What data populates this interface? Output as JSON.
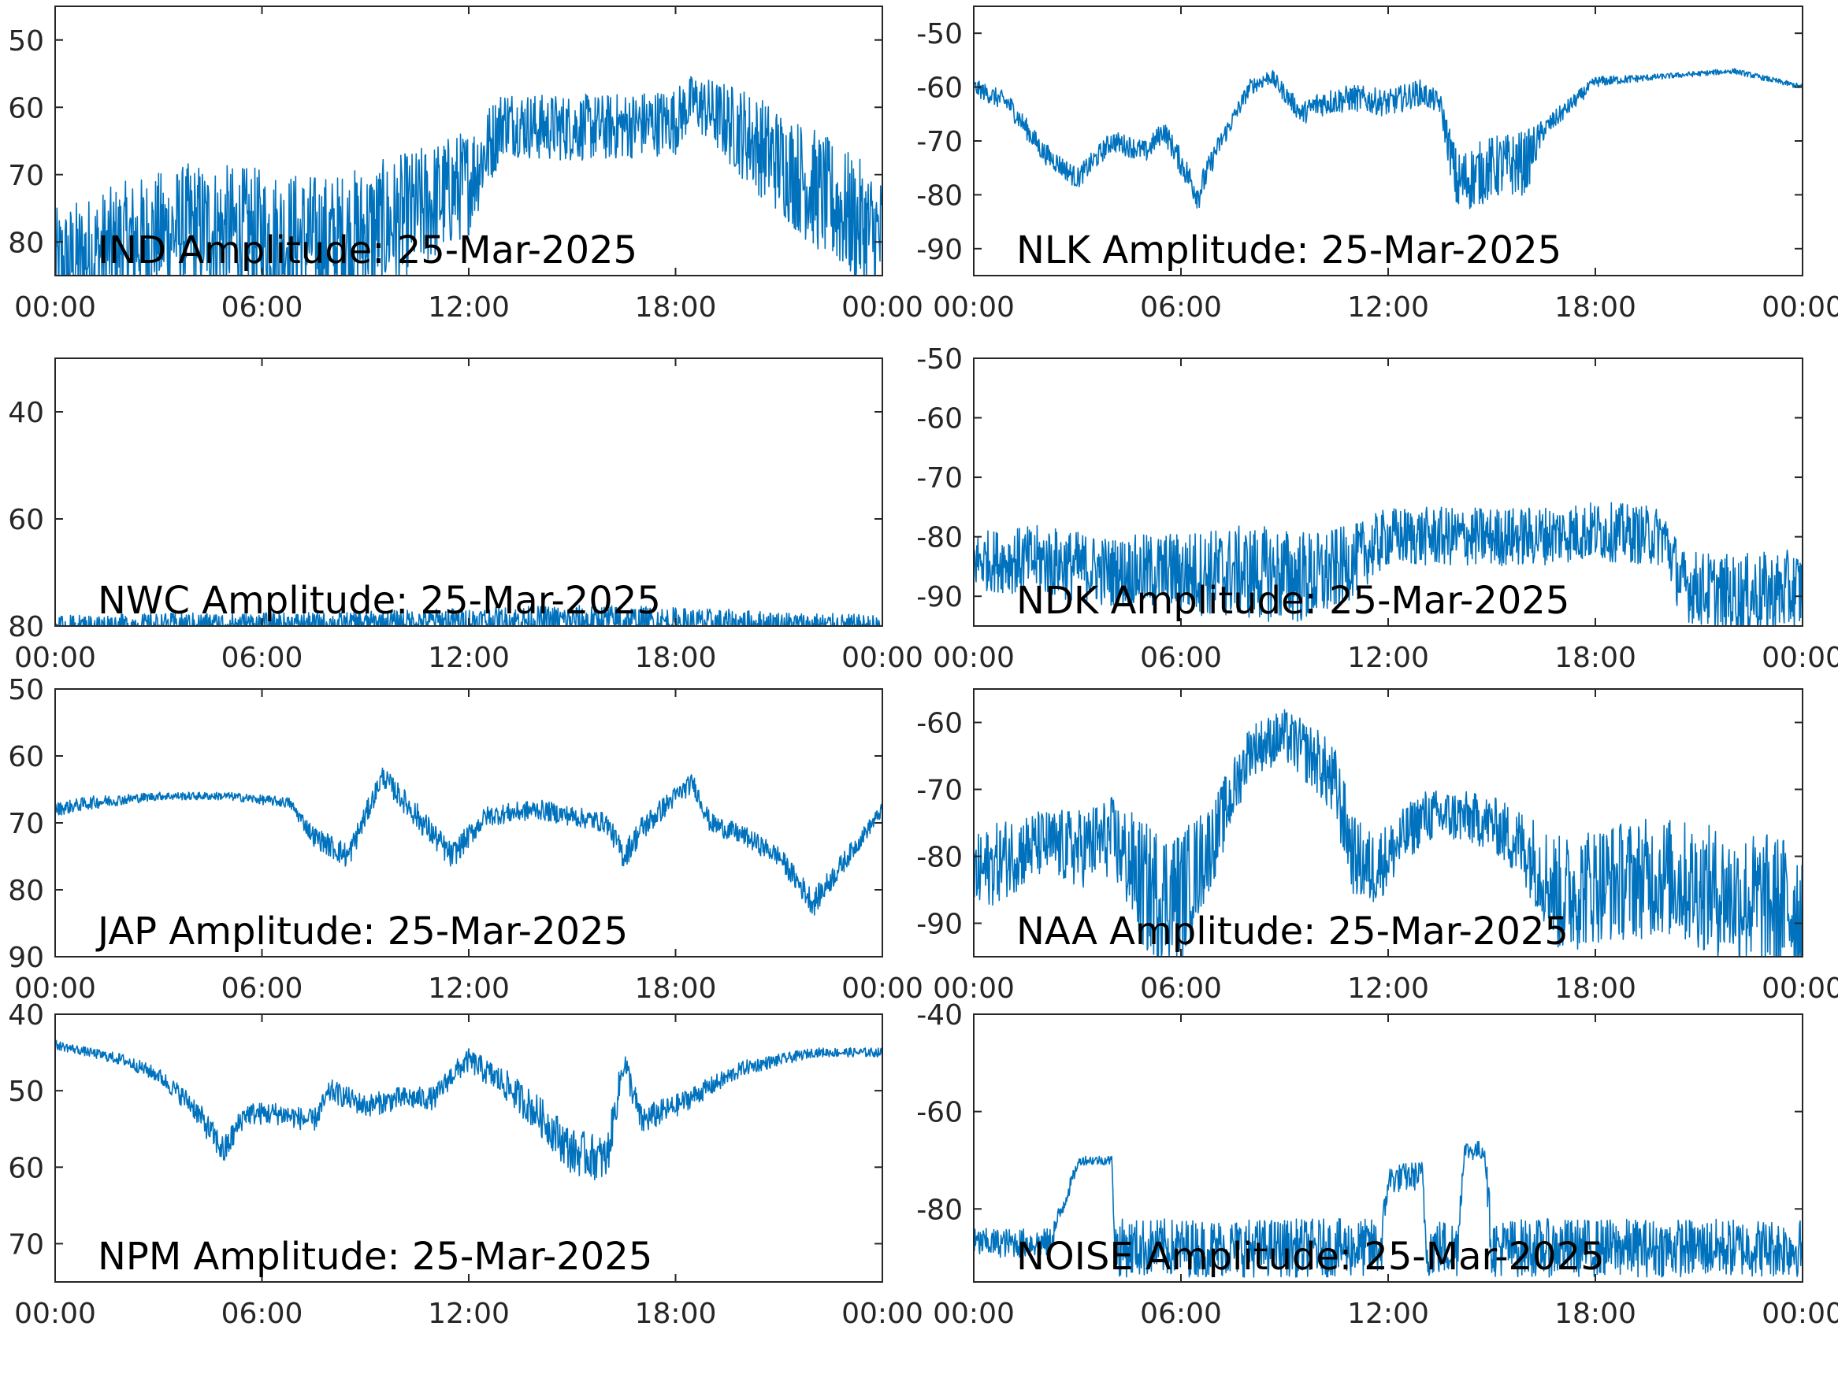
{
  "figure": {
    "line_color": "#0072BD",
    "axis_color": "#262626"
  },
  "chart_data": [
    {
      "type": "line",
      "station": "IND",
      "title": "IND Amplitude: 25-Mar-2025",
      "x_ticks": [
        "00:00",
        "06:00",
        "12:00",
        "18:00",
        "00:00"
      ],
      "xlim_hours": [
        0,
        24
      ],
      "ylim": [
        -85,
        -45
      ],
      "y_ticks": [
        -80,
        -70,
        -60,
        -50
      ],
      "y_tick_labels": [
        "80",
        "70",
        "60",
        "50"
      ],
      "x_hours": [
        0,
        2,
        4,
        6,
        8,
        10,
        12,
        13,
        14,
        16,
        18,
        18.5,
        20,
        22,
        24
      ],
      "y": [
        -84,
        -80,
        -78,
        -79,
        -80,
        -77,
        -71,
        -62,
        -63,
        -63,
        -62,
        -59,
        -64,
        -72,
        -80
      ],
      "noise_band": [
        9,
        9,
        10,
        10,
        10,
        10,
        8,
        5,
        5,
        5,
        5,
        4,
        7,
        9,
        10
      ]
    },
    {
      "type": "line",
      "station": "NLK",
      "title": "NLK Amplitude: 25-Mar-2025",
      "x_ticks": [
        "00:00",
        "06:00",
        "12:00",
        "18:00",
        "00:00"
      ],
      "xlim_hours": [
        0,
        24
      ],
      "ylim": [
        -95,
        -45
      ],
      "y_ticks": [
        -90,
        -80,
        -70,
        -60,
        -50
      ],
      "y_tick_labels": [
        "-90",
        "-80",
        "-70",
        "-60",
        "-50"
      ],
      "x_hours": [
        0,
        1,
        2,
        3,
        4,
        5,
        5.5,
        6.5,
        7,
        8,
        8.6,
        9.5,
        10,
        11,
        12,
        12.9,
        13.5,
        14,
        15,
        16,
        16.5,
        18,
        20,
        22,
        24
      ],
      "y": [
        -60,
        -63,
        -72,
        -77,
        -70,
        -72,
        -68,
        -80,
        -72,
        -60,
        -58,
        -65,
        -63,
        -62,
        -63,
        -61,
        -63,
        -78,
        -75,
        -74,
        -68,
        -59,
        -58,
        -57,
        -60
      ],
      "noise_band": [
        1.5,
        2,
        2,
        2,
        2,
        2,
        2,
        3,
        2,
        1.5,
        1.5,
        2,
        2.5,
        2.5,
        2.5,
        2.5,
        2,
        6,
        6,
        6,
        2,
        1,
        0.5,
        0.5,
        0.5
      ]
    },
    {
      "type": "line",
      "station": "NDK",
      "title": "NDK Amplitude: 25-Mar-2025",
      "x_ticks": [
        "00:00",
        "06:00",
        "12:00",
        "18:00",
        "00:00"
      ],
      "xlim_hours": [
        0,
        24
      ],
      "ylim": [
        -95,
        -50
      ],
      "y_ticks": [
        -90,
        -80,
        -70,
        -60,
        -50
      ],
      "y_tick_labels": [
        "-90",
        "-80",
        "-70",
        "-60",
        "-50"
      ],
      "x_hours": [
        0,
        2,
        4,
        6,
        8,
        10,
        11,
        12,
        14,
        16,
        18,
        20,
        20.5,
        22,
        24
      ],
      "y": [
        -84,
        -84,
        -86,
        -86,
        -86,
        -87,
        -84,
        -80,
        -80,
        -80,
        -79,
        -80,
        -88,
        -90,
        -89
      ],
      "noise_band": [
        5,
        6,
        6,
        7,
        8,
        8,
        6,
        5,
        5,
        5,
        5,
        5,
        6,
        7,
        7
      ]
    },
    {
      "type": "line",
      "station": "JAP",
      "title": "JAP Amplitude: 25-Mar-2025",
      "x_ticks": [
        "00:00",
        "06:00",
        "12:00",
        "18:00",
        "00:00"
      ],
      "xlim_hours": [
        0,
        24
      ],
      "ylim": [
        -90,
        -50
      ],
      "y_ticks": [
        -90,
        -80,
        -70,
        -60,
        -50
      ],
      "y_tick_labels": [
        "90",
        "80",
        "70",
        "60",
        "50"
      ],
      "x_hours": [
        0,
        1,
        3,
        5,
        6.8,
        7.5,
        8.5,
        9.5,
        10.5,
        11.5,
        12.5,
        14,
        16,
        16.5,
        17,
        18,
        18.5,
        19,
        20,
        21,
        22,
        23,
        24
      ],
      "y": [
        -68,
        -67,
        -66,
        -66,
        -67,
        -72,
        -75,
        -63,
        -69,
        -75,
        -69,
        -68,
        -70,
        -75,
        -71,
        -66,
        -64,
        -70,
        -72,
        -75,
        -82,
        -75,
        -68
      ],
      "noise_band": [
        1,
        1,
        0.6,
        0.6,
        0.8,
        1.5,
        2,
        1.5,
        2,
        2,
        1.5,
        1.5,
        1.5,
        2,
        2,
        1.5,
        1.5,
        1.5,
        1.5,
        1.5,
        2,
        1.5,
        1
      ]
    },
    {
      "type": "line",
      "station": "NAA",
      "title": "NAA Amplitude: 25-Mar-2025",
      "x_ticks": [
        "00:00",
        "06:00",
        "12:00",
        "18:00",
        "00:00"
      ],
      "xlim_hours": [
        0,
        24
      ],
      "ylim": [
        -95,
        -55
      ],
      "y_ticks": [
        -90,
        -80,
        -70,
        -60
      ],
      "y_tick_labels": [
        "-90",
        "-80",
        "-70",
        "-60"
      ],
      "x_hours": [
        0,
        1,
        2,
        3,
        4,
        5,
        6,
        7,
        8,
        9,
        10,
        10.5,
        11,
        11.5,
        12,
        13,
        14,
        15,
        16,
        17,
        18,
        20,
        22,
        24
      ],
      "y": [
        -83,
        -80,
        -78,
        -79,
        -77,
        -85,
        -86,
        -77,
        -64,
        -62,
        -66,
        -70,
        -80,
        -82,
        -80,
        -74,
        -74,
        -75,
        -79,
        -86,
        -84,
        -83,
        -86,
        -88
      ],
      "noise_band": [
        6,
        6,
        5,
        6,
        6,
        10,
        10,
        6,
        4,
        4,
        5,
        6,
        6,
        6,
        5,
        4,
        4,
        4,
        6,
        9,
        9,
        9,
        10,
        11
      ]
    },
    {
      "type": "line",
      "station": "NPM",
      "title": "NPM Amplitude: 25-Mar-2025",
      "x_ticks": [
        "00:00",
        "06:00",
        "12:00",
        "18:00",
        "00:00"
      ],
      "xlim_hours": [
        0,
        24
      ],
      "ylim": [
        -75,
        -40
      ],
      "y_ticks": [
        -70,
        -60,
        -50,
        -40
      ],
      "y_tick_labels": [
        "70",
        "60",
        "50",
        "40"
      ],
      "x_hours": [
        0,
        1,
        2,
        3,
        4,
        4.9,
        5.5,
        6.5,
        7.5,
        8,
        9,
        10,
        11,
        11.5,
        12,
        13,
        14,
        15,
        16,
        16.5,
        17,
        18,
        20,
        22,
        24
      ],
      "y": [
        -44,
        -45,
        -46,
        -48,
        -52,
        -58,
        -53,
        -53,
        -54,
        -50,
        -52,
        -51,
        -51,
        -48,
        -46,
        -49,
        -53,
        -58,
        -59,
        -46,
        -54,
        -52,
        -47,
        -45,
        -45
      ],
      "noise_band": [
        0.6,
        0.6,
        0.8,
        1,
        1.5,
        2,
        1.5,
        1.5,
        1.5,
        1.5,
        1.5,
        1.5,
        1.5,
        1.5,
        1.5,
        2,
        2.5,
        3,
        3,
        2,
        2,
        1.5,
        1,
        0.6,
        0.6
      ]
    },
    {
      "type": "line",
      "station": "NWC",
      "title": "NWC Amplitude: 25-Mar-2025",
      "x_ticks": [
        "00:00",
        "06:00",
        "12:00",
        "18:00",
        "00:00"
      ],
      "xlim_hours": [
        0,
        24
      ],
      "ylim": [
        -80,
        -30
      ],
      "y_ticks": [
        -80,
        -60,
        -40
      ],
      "y_tick_labels": [
        "80",
        "60",
        "40"
      ],
      "x_hours": [
        0,
        4,
        8,
        12,
        16,
        20,
        24
      ],
      "y": [
        -80,
        -79.5,
        -79.5,
        -79,
        -79,
        -79.5,
        -80
      ],
      "noise_band": [
        2,
        2,
        2,
        2.5,
        3,
        2.5,
        2
      ]
    },
    {
      "type": "line",
      "station": "NOISE",
      "title": "NOISE Amplitude: 25-Mar-2025",
      "x_ticks": [
        "00:00",
        "06:00",
        "12:00",
        "18:00",
        "00:00"
      ],
      "xlim_hours": [
        0,
        24
      ],
      "ylim": [
        -95,
        -40
      ],
      "y_ticks": [
        -80,
        -60,
        -40
      ],
      "y_tick_labels": [
        "-80",
        "-60",
        "-40"
      ],
      "x_hours": [
        0,
        2,
        2.2,
        3,
        3.1,
        4,
        4.1,
        8,
        11.8,
        12,
        13,
        13.1,
        14,
        14.2,
        14.8,
        15,
        18,
        21,
        24
      ],
      "y": [
        -87,
        -87,
        -87,
        -71,
        -70,
        -70,
        -88,
        -88,
        -88,
        -74,
        -73,
        -88,
        -88,
        -68,
        -68,
        -88,
        -88,
        -88,
        -88
      ],
      "noise_band": [
        3,
        3,
        3,
        1,
        1,
        1,
        6,
        6,
        6,
        3,
        3,
        6,
        6,
        2,
        2,
        6,
        6,
        6,
        6
      ]
    }
  ]
}
